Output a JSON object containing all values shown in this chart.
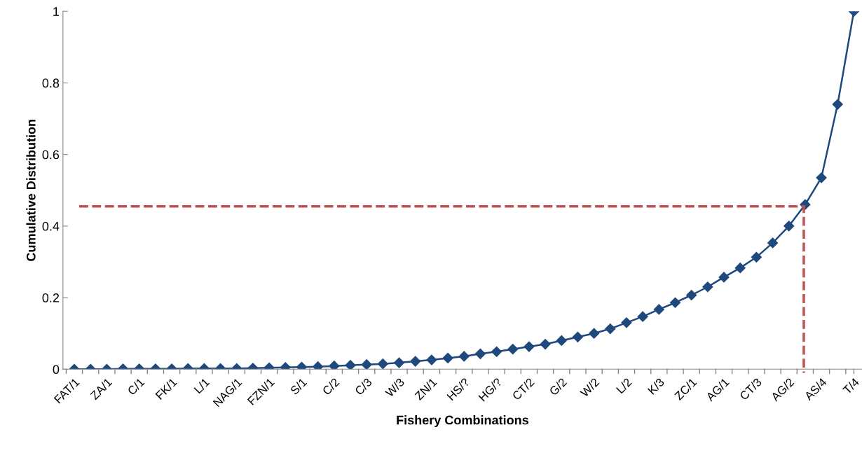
{
  "chart_data": {
    "type": "line",
    "xlabel": "Fishery Combinations",
    "ylabel": "Cumulative Distribution",
    "categories": [
      "FAT/1",
      null,
      "ZA/1",
      null,
      "C/1",
      null,
      "FK/1",
      null,
      "L/1",
      null,
      "NAG/1",
      null,
      "FZN/1",
      null,
      "S/1",
      null,
      "C/2",
      null,
      "C/3",
      null,
      "W/3",
      null,
      "ZN/1",
      null,
      "HS/?",
      null,
      "HG/?",
      null,
      "CT/2",
      null,
      "G/2",
      null,
      "W/2",
      null,
      "L/2",
      null,
      "K/3",
      null,
      "ZC/1",
      null,
      "AG/1",
      null,
      "CT/3",
      null,
      "AG/2",
      null,
      "AS/4",
      null,
      "T/4"
    ],
    "series": [
      {
        "color": "#1f497d",
        "marker": "diamond",
        "values": [
          0,
          0,
          0,
          0.001,
          0.001,
          0.001,
          0.001,
          0.002,
          0.002,
          0.002,
          0.002,
          0.003,
          0.004,
          0.005,
          0.006,
          0.007,
          0.009,
          0.011,
          0.013,
          0.015,
          0.018,
          0.022,
          0.026,
          0.031,
          0.036,
          0.043,
          0.049,
          0.056,
          0.063,
          0.07,
          0.08,
          0.09,
          0.1,
          0.113,
          0.13,
          0.147,
          0.167,
          0.186,
          0.207,
          0.23,
          0.257,
          0.283,
          0.313,
          0.353,
          0.4,
          0.46,
          0.535,
          0.74,
          1
        ]
      }
    ],
    "ylim": [
      0,
      1
    ],
    "yticks": [
      0,
      0.2,
      0.4,
      0.6,
      0.8,
      1
    ],
    "ref_lines": [
      {
        "axis": "y",
        "value": 0.455,
        "color": "#c0504d",
        "line_style": "dashed"
      }
    ],
    "grid": false,
    "legend": false
  }
}
